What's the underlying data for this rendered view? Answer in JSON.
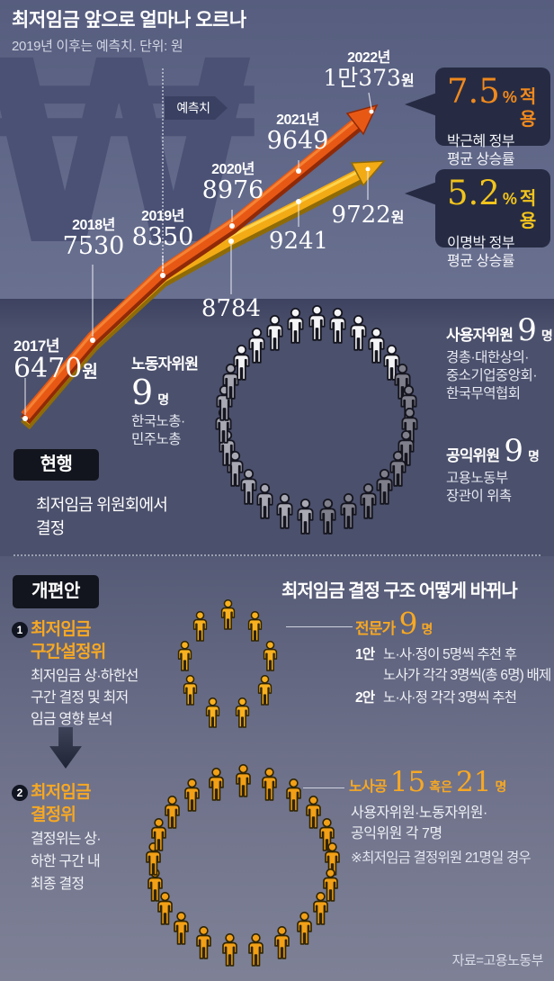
{
  "title": "최저임금 앞으로 얼마나 오르나",
  "subtitle": "2019년 이후는 예측치. 단위: 원",
  "source": "자료=고용노동부",
  "colors": {
    "series_high": "#e85815",
    "series_low": "#f3ab15",
    "rate_high": "#f0891d",
    "rate_low": "#f2c41c",
    "accent_orange": "#f7a823",
    "figure_white": "#f4f4f6",
    "figure_gray_light": "#a9a9b4",
    "figure_gray_dark": "#7f7f8b",
    "figure_orange": "#f9b120",
    "figure_orange2": "#f2a017"
  },
  "chart": {
    "watermark": "₩",
    "forecast_label": "예측치",
    "points": {
      "y2017": {
        "year": "2017년",
        "value": "6470",
        "unit": "원"
      },
      "y2018": {
        "year": "2018년",
        "value": "7530"
      },
      "y2019": {
        "year": "2019년",
        "value": "8350"
      },
      "y2020": {
        "year": "2020년",
        "value": "8976"
      },
      "y2021": {
        "year": "2021년",
        "value": "9649"
      },
      "y2022": {
        "year": "2022년",
        "value": "1만373",
        "unit": "원"
      },
      "alt2020": {
        "value": "8784"
      },
      "alt2021": {
        "value": "9241"
      },
      "alt2022": {
        "value": "9722",
        "unit": "원"
      }
    },
    "callouts": [
      {
        "rate": "7.5",
        "pct": "%",
        "apply": "적용",
        "line1": "박근혜 정부",
        "line2": "평균 상승률"
      },
      {
        "rate": "5.2",
        "pct": "%",
        "apply": "적용",
        "line1": "이명박 정부",
        "line2": "평균 상승률"
      }
    ]
  },
  "chart_data": {
    "type": "line",
    "x": [
      2017,
      2018,
      2019,
      2020,
      2021,
      2022
    ],
    "series": [
      {
        "name": "박근혜 정부 평균 상승률 7.5% 적용",
        "values": [
          6470,
          7530,
          8350,
          8976,
          9649,
          10373
        ],
        "color": "#e85815"
      },
      {
        "name": "이명박 정부 평균 상승률 5.2% 적용",
        "values": [
          6470,
          7530,
          8350,
          8784,
          9241,
          9722
        ],
        "color": "#f3ab15"
      }
    ],
    "title": "최저임금 앞으로 얼마나 오르나",
    "note": "2019년 이후는 예측치. 단위: 원",
    "unit": "원"
  },
  "current": {
    "badge": "현행",
    "desc": [
      "최저임금 위원회에서",
      "결정"
    ],
    "total_figures": 27,
    "groups": [
      {
        "name": "노동자위원",
        "count": "9",
        "unit": "명",
        "desc": [
          "한국노총·",
          "민주노총"
        ]
      },
      {
        "name": "사용자위원",
        "count": "9",
        "unit": "명",
        "desc": [
          "경총·대한상의·",
          "중소기업중앙회·",
          "한국무역협회"
        ]
      },
      {
        "name": "공익위원",
        "count": "9",
        "unit": "명",
        "desc": [
          "고용노동부",
          "장관이 위촉"
        ]
      }
    ]
  },
  "reform": {
    "badge": "개편안",
    "heading": "최저임금 결정 구조 어떻게 바뀌나",
    "step1": {
      "num": "1",
      "title": [
        "최저임금",
        "구간설정위"
      ],
      "desc": [
        "최저임금 상·하한선",
        "구간 결정 및 최저",
        "임금 영향 분석"
      ],
      "group_label": "전문가",
      "count": "9",
      "unit": "명",
      "figure_count": 9,
      "options": [
        {
          "tag": "1안",
          "text": "노·사·정이 5명씩 추천 후"
        },
        {
          "tag": "",
          "text": "노사가 각각 3명씩(총 6명) 배제"
        },
        {
          "tag": "2안",
          "text": "노·사·정 각각 3명씩 추천"
        }
      ]
    },
    "step2": {
      "num": "2",
      "title": [
        "최저임금",
        "결정위"
      ],
      "desc": [
        "결정위는 상·",
        "하한 구간 내",
        "최종 결정"
      ],
      "group_label": "노사공",
      "count1": "15",
      "or": "혹은",
      "count2": "21",
      "unit": "명",
      "figure_count": 21,
      "sub": [
        "사용자위원·노동자위원·",
        "공익위원 각 7명"
      ],
      "note": "※최저임금 결정위원 21명일 경우"
    }
  }
}
